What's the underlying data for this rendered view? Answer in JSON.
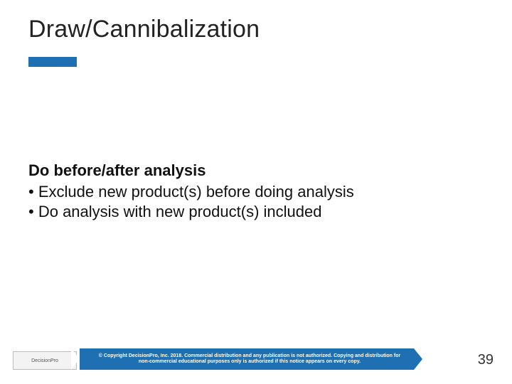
{
  "title": "Draw/Cannibalization",
  "accent_color": "#1f6fb3",
  "content": {
    "lead": "Do before/after analysis",
    "bullets": [
      "Exclude new product(s) before doing analysis",
      "Do analysis with new product(s) included"
    ]
  },
  "footer": {
    "logo_text": "DecisionPro",
    "copyright": "© Copyright DecisionPro, Inc. 2018. Commercial distribution and any publication is not authorized. Copying and distribution for non-commercial educational purposes only is authorized if this notice appears on every copy.",
    "page_number": "39"
  },
  "styling": {
    "title_fontsize": 34,
    "body_fontsize": 22,
    "lead_fontweight": 700,
    "bg_color": "#ffffff",
    "text_color": "#111111"
  }
}
